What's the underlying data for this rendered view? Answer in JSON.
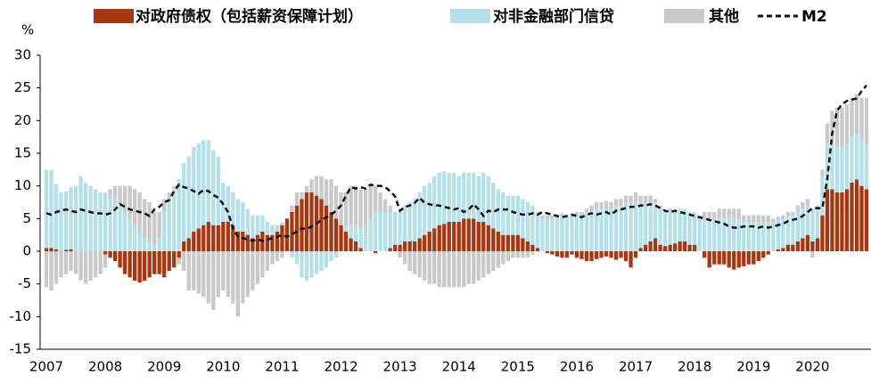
{
  "chart_data": {
    "type": "bar",
    "stacked": true,
    "y_unit_label": "%",
    "categories": [
      "2007",
      null,
      null,
      null,
      null,
      null,
      null,
      null,
      null,
      null,
      null,
      null,
      "2008",
      null,
      null,
      null,
      null,
      null,
      null,
      null,
      null,
      null,
      null,
      null,
      "2009",
      null,
      null,
      null,
      null,
      null,
      null,
      null,
      null,
      null,
      null,
      null,
      "2010",
      null,
      null,
      null,
      null,
      null,
      null,
      null,
      null,
      null,
      null,
      null,
      "2011",
      null,
      null,
      null,
      null,
      null,
      null,
      null,
      null,
      null,
      null,
      null,
      "2012",
      null,
      null,
      null,
      null,
      null,
      null,
      null,
      null,
      null,
      null,
      null,
      "2013",
      null,
      null,
      null,
      null,
      null,
      null,
      null,
      null,
      null,
      null,
      null,
      "2014",
      null,
      null,
      null,
      null,
      null,
      null,
      null,
      null,
      null,
      null,
      null,
      "2015",
      null,
      null,
      null,
      null,
      null,
      null,
      null,
      null,
      null,
      null,
      null,
      "2016",
      null,
      null,
      null,
      null,
      null,
      null,
      null,
      null,
      null,
      null,
      null,
      "2017",
      null,
      null,
      null,
      null,
      null,
      null,
      null,
      null,
      null,
      null,
      null,
      "2018",
      null,
      null,
      null,
      null,
      null,
      null,
      null,
      null,
      null,
      null,
      null,
      "2019",
      null,
      null,
      null,
      null,
      null,
      null,
      null,
      null,
      null,
      null,
      null,
      "2020",
      null,
      null,
      null,
      null,
      null,
      null,
      null,
      null,
      null,
      null,
      null
    ],
    "series": [
      {
        "name": "对政府债权（包括薪资保障计划）",
        "color": "#a8360f",
        "values": [
          0.5,
          0.5,
          0.3,
          0,
          0.2,
          0.3,
          0,
          0,
          0,
          0,
          0,
          0,
          -0.5,
          -1,
          -1.5,
          -2.5,
          -3.5,
          -4,
          -4.5,
          -4.8,
          -4.5,
          -4,
          -3.5,
          -3.5,
          -4,
          -3,
          -2.5,
          -1,
          1.5,
          2,
          3,
          3.5,
          4,
          4.5,
          4,
          4,
          4.5,
          4.5,
          4,
          3,
          3,
          2.5,
          2,
          2.5,
          3,
          2.5,
          2.5,
          3,
          4,
          5,
          6,
          7,
          8,
          9,
          9,
          8.5,
          8,
          7,
          6,
          5,
          4,
          3,
          2,
          1.5,
          0.5,
          0,
          0,
          -0.3,
          0,
          0,
          0.5,
          1,
          1,
          1.5,
          1.5,
          1.5,
          2,
          2.5,
          3,
          3.5,
          4,
          4.2,
          4.5,
          4.5,
          4.5,
          5,
          5,
          5,
          4.5,
          4.5,
          4,
          3.5,
          3,
          2.5,
          2.5,
          2.5,
          2.5,
          2,
          1.5,
          1,
          0.5,
          0,
          -0.3,
          -0.5,
          -0.8,
          -1,
          -1,
          -0.5,
          -1,
          -1.2,
          -1.5,
          -1.5,
          -1.2,
          -1,
          -0.8,
          -1,
          -1.3,
          -1,
          -1.5,
          -2.5,
          -1,
          0.5,
          1,
          1.5,
          2,
          1,
          0.8,
          1,
          1.2,
          1.5,
          1.5,
          1,
          1,
          0,
          -1,
          -2.5,
          -2,
          -2,
          -2,
          -2.5,
          -2.8,
          -2.5,
          -2.3,
          -2,
          -2,
          -1.5,
          -1,
          -0.5,
          0,
          0.3,
          0.5,
          1,
          1,
          1.5,
          2,
          2.5,
          1.5,
          2,
          5.5,
          9.5,
          9.5,
          9,
          9,
          9.5,
          10.5,
          11,
          10,
          9.5
        ]
      },
      {
        "name": "对非金融部门信贷",
        "color": "#b4e0ea",
        "values": [
          12,
          12,
          10,
          9,
          9,
          9.5,
          10,
          11.5,
          10.5,
          10,
          9.5,
          9,
          9,
          8.5,
          8,
          7,
          6,
          5,
          4,
          3,
          2,
          1.5,
          1,
          2,
          6,
          8,
          10,
          11,
          12,
          12.5,
          13,
          13,
          13,
          12.5,
          11.5,
          10.5,
          6,
          5.5,
          5,
          5,
          4.5,
          4,
          3.5,
          3,
          2.5,
          2,
          1.5,
          1,
          0.5,
          0,
          -1,
          -2,
          -4,
          -4.5,
          -4,
          -3.5,
          -3,
          -2.5,
          -1.5,
          -1,
          0,
          1,
          2,
          2.5,
          3,
          4,
          5,
          6,
          6,
          6,
          5.5,
          5,
          5,
          5.5,
          6,
          6.5,
          7,
          7.5,
          7.5,
          8,
          8,
          8,
          7.5,
          7.5,
          7,
          7,
          7,
          7,
          7,
          7.5,
          7.5,
          7,
          6.5,
          6.5,
          6,
          6,
          6,
          6,
          6,
          6,
          5.5,
          5,
          5,
          5,
          5,
          5.5,
          5.5,
          5.5,
          5.5,
          5.5,
          6,
          6,
          6.5,
          6.5,
          6.5,
          6.5,
          7,
          7,
          7.5,
          7.5,
          7.5,
          7,
          6.5,
          6,
          5.5,
          5.5,
          5,
          5,
          5,
          5,
          5,
          5,
          5,
          5,
          5,
          5,
          5,
          5,
          5,
          5,
          5,
          5,
          4.5,
          4.5,
          4.5,
          4.5,
          4.5,
          4.5,
          4.5,
          4.5,
          4.5,
          4.5,
          4.5,
          4.5,
          4.5,
          4.5,
          5,
          5,
          6,
          7,
          7,
          7,
          7,
          7,
          7,
          7,
          7,
          7
        ]
      },
      {
        "name": "其他",
        "color": "#c9c9c9",
        "values": [
          -5.5,
          -6,
          -5,
          -4,
          -3.5,
          -3,
          -3.5,
          -4.5,
          -5,
          -4.5,
          -4,
          -3.5,
          -2,
          1,
          2,
          3,
          4,
          5,
          5.5,
          6,
          6,
          6,
          5,
          4,
          2,
          1,
          0,
          -1,
          -3,
          -6,
          -6,
          -6.5,
          -7,
          -8,
          -9,
          -7,
          -6,
          -7,
          -8,
          -10,
          -8,
          -7,
          -6,
          -5,
          -4,
          -3,
          -2,
          -1.5,
          -1,
          0,
          1,
          2,
          1,
          1,
          2,
          3,
          3.5,
          4,
          5,
          5,
          5,
          5,
          6,
          6,
          6,
          5.5,
          5,
          4,
          3,
          2,
          1,
          0,
          -1,
          -2,
          -3,
          -3.5,
          -4,
          -4.5,
          -5,
          -5,
          -5.5,
          -5.5,
          -5.5,
          -5.5,
          -5.5,
          -5.5,
          -5,
          -5,
          -4.5,
          -4,
          -3.5,
          -3,
          -2.5,
          -2,
          -1.5,
          -1,
          -1,
          -1,
          -1,
          -0.5,
          0,
          0.5,
          0.5,
          0.5,
          0.5,
          0.3,
          0,
          0,
          0.5,
          0.5,
          0.5,
          1,
          1,
          1,
          1.2,
          1,
          1,
          1,
          1,
          1,
          1.5,
          1,
          1,
          1,
          0.5,
          0.5,
          0.5,
          0.5,
          0,
          0,
          0,
          0,
          0,
          0,
          1,
          1,
          1,
          1.5,
          1.5,
          1.5,
          1.5,
          1.5,
          1,
          1,
          1,
          1,
          1,
          1,
          0.5,
          0.5,
          0.5,
          0.5,
          0.5,
          1,
          1,
          1,
          -1,
          0,
          1,
          3,
          5,
          6,
          6,
          6,
          6,
          6,
          6.5,
          7
        ]
      },
      {
        "name": "M2",
        "color": "#111111",
        "type": "line",
        "dashed": true,
        "values": [
          5.8,
          5.6,
          6,
          6.2,
          6.4,
          6.2,
          6,
          6.4,
          6.2,
          6,
          5.8,
          5.8,
          5.6,
          5.8,
          6.4,
          7.2,
          6.8,
          6.4,
          6.2,
          6,
          5.8,
          5.4,
          6.4,
          6.8,
          7.5,
          7.8,
          9.2,
          10.2,
          9.8,
          9.6,
          9.2,
          8.8,
          9.4,
          9.2,
          8.6,
          8.2,
          7.2,
          6,
          3.5,
          2.2,
          2,
          1.8,
          1.6,
          1.8,
          1.6,
          1.8,
          2,
          2.2,
          2.5,
          2.2,
          2.6,
          3,
          3.5,
          3.4,
          3.8,
          4.2,
          4.8,
          5.2,
          5.6,
          6.2,
          7,
          8.5,
          9.8,
          9.6,
          9.8,
          9.6,
          10.2,
          10,
          10,
          9.8,
          9.2,
          8.4,
          6.2,
          6.8,
          7,
          7.4,
          8.2,
          7.4,
          7.2,
          7,
          7,
          6.8,
          6.6,
          6.4,
          6.6,
          6,
          6.4,
          7.2,
          6.4,
          5.4,
          6.2,
          6,
          6.4,
          6.4,
          6.4,
          6,
          5.8,
          5.6,
          5.6,
          5.8,
          5.6,
          6,
          5.8,
          5.6,
          5.4,
          5.2,
          5.4,
          5.6,
          5.4,
          5.2,
          5.6,
          5.8,
          5.6,
          5.8,
          6,
          5.6,
          6.2,
          6.4,
          6.6,
          6.8,
          6.8,
          7,
          7,
          7.2,
          7,
          6.6,
          6.2,
          6,
          6.2,
          6,
          5.8,
          5.6,
          5.4,
          5.2,
          5,
          4.8,
          4.6,
          4.4,
          4.2,
          3.8,
          3.6,
          3.6,
          3.8,
          3.8,
          3.8,
          3.6,
          3.8,
          3.6,
          3.8,
          4,
          4.2,
          4.6,
          4.8,
          5,
          5.4,
          6,
          6.6,
          6.6,
          6.6,
          11,
          18,
          21.5,
          22.5,
          23,
          23.2,
          23.4,
          24.5,
          25.4
        ]
      }
    ],
    "ylim": [
      -15,
      30
    ],
    "yticks": [
      -15,
      -10,
      -5,
      0,
      5,
      10,
      15,
      20,
      25,
      30
    ],
    "grid": false,
    "legend": "top"
  }
}
